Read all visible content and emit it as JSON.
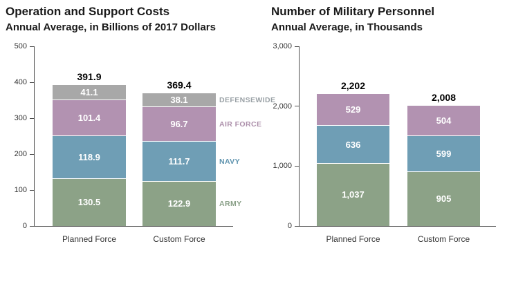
{
  "chart_data": [
    {
      "type": "bar",
      "stacked": true,
      "title": "Operation and Support Costs",
      "subtitle": "Annual Average, in Billions of 2017 Dollars",
      "categories": [
        "Planned Force",
        "Custom Force"
      ],
      "series": [
        {
          "name": "ARMY",
          "values": [
            130.5,
            122.9
          ],
          "labels": [
            "130.5",
            "122.9"
          ],
          "color": "#8CA287",
          "legend_color": "#8AA088"
        },
        {
          "name": "NAVY",
          "values": [
            118.9,
            111.7
          ],
          "labels": [
            "118.9",
            "111.7"
          ],
          "color": "#6F9EB5",
          "legend_color": "#5E93AE"
        },
        {
          "name": "AIR FORCE",
          "values": [
            101.4,
            96.7
          ],
          "labels": [
            "101.4",
            "96.7"
          ],
          "color": "#B292B1",
          "legend_color": "#AC8FAA"
        },
        {
          "name": "DEFENSEWIDE",
          "values": [
            41.1,
            38.1
          ],
          "labels": [
            "41.1",
            "38.1"
          ],
          "color": "#A8A8A8",
          "legend_color": "#9AA1A6"
        }
      ],
      "totals": [
        "391.9",
        "369.4"
      ],
      "ylim": [
        0,
        500
      ],
      "ytick_labels": [
        "0",
        "100",
        "200",
        "300",
        "400",
        "500"
      ],
      "legend": {
        "show": true,
        "position": "right"
      },
      "grid": false,
      "xlabel": "",
      "ylabel": ""
    },
    {
      "type": "bar",
      "stacked": true,
      "title": "Number of Military Personnel",
      "subtitle": "Annual Average, in Thousands",
      "categories": [
        "Planned Force",
        "Custom Force"
      ],
      "series": [
        {
          "name": "ARMY",
          "values": [
            1037,
            905
          ],
          "labels": [
            "1,037",
            "905"
          ],
          "color": "#8CA287"
        },
        {
          "name": "NAVY",
          "values": [
            636,
            599
          ],
          "labels": [
            "636",
            "599"
          ],
          "color": "#6F9EB5"
        },
        {
          "name": "AIR FORCE",
          "values": [
            529,
            504
          ],
          "labels": [
            "529",
            "504"
          ],
          "color": "#B292B1"
        }
      ],
      "totals": [
        "2,202",
        "2,008"
      ],
      "ylim": [
        0,
        3000
      ],
      "ytick_labels": [
        "0",
        "1,000",
        "2,000",
        "3,000"
      ],
      "legend": {
        "show": false
      },
      "grid": false,
      "xlabel": "",
      "ylabel": ""
    }
  ],
  "colors": {
    "background": "#FFFFFF",
    "axis": "#4A4A4A",
    "title_text": "#1A1A1A",
    "tick_text": "#333333",
    "total_text": "#000000",
    "segment_label_text": "#FFFFFF"
  }
}
